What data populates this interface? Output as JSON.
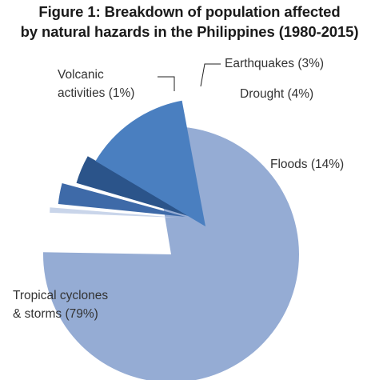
{
  "title_line1": "Figure 1: Breakdown of population affected",
  "title_line2": "by natural hazards in the Philippines (1980-2015)",
  "chart_data": {
    "type": "pie",
    "title": "Figure 1: Breakdown of population affected by natural hazards in the Philippines (1980-2015)",
    "slices": [
      {
        "name": "Tropical cyclones & storms",
        "value": 79,
        "label_lines": [
          "Tropical cyclones",
          "& storms (79%)"
        ],
        "color": "#95acd4",
        "exploded": false
      },
      {
        "name": "Volcanic activities",
        "value": 1,
        "label_lines": [
          "Volcanic",
          "activities (1%)"
        ],
        "color": "#c9d5ea",
        "exploded": true
      },
      {
        "name": "Earthquakes",
        "value": 3,
        "label_lines": [
          "Earthquakes (3%)"
        ],
        "color": "#3e6aa8",
        "exploded": true
      },
      {
        "name": "Drought",
        "value": 4,
        "label_lines": [
          "Drought (4%)"
        ],
        "color": "#2b548a",
        "exploded": true
      },
      {
        "name": "Floods",
        "value": 14,
        "label_lines": [
          "Floods (14%)"
        ],
        "color": "#4a7fc0",
        "exploded": true
      }
    ]
  }
}
